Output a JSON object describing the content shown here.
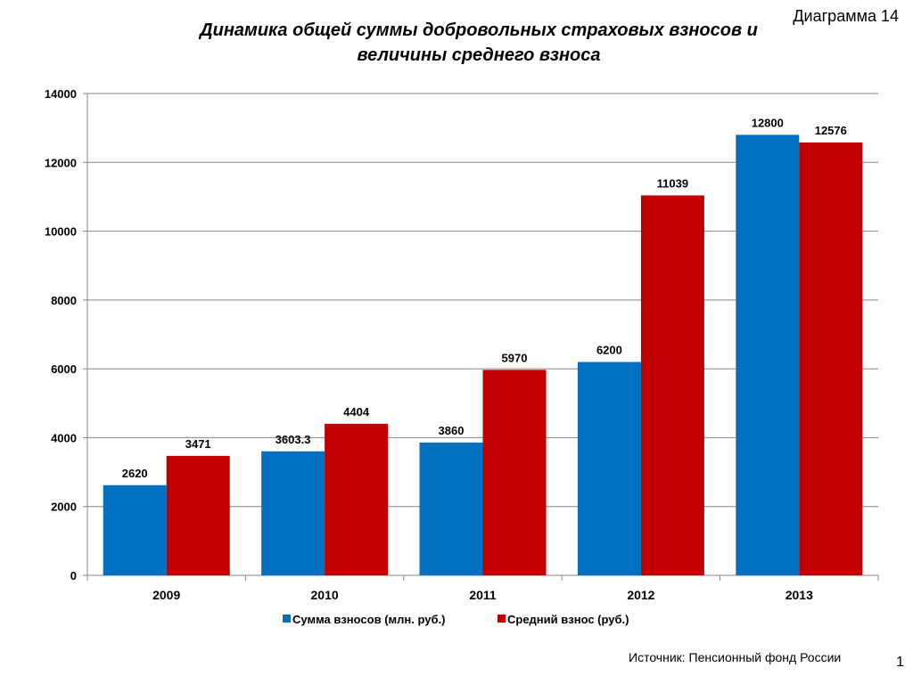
{
  "header": {
    "label": "Диаграмма  14"
  },
  "title": {
    "line1": "Динамика общей суммы добровольных страховых взносов и",
    "line2": "величины среднего взноса"
  },
  "source": "Источник:  Пенсионный фонд России",
  "page_number": "1",
  "colors": {
    "series1": "#0070C0",
    "series2": "#C00000",
    "grid": "#868686"
  },
  "chart_data": {
    "type": "bar",
    "title": "",
    "xlabel": "",
    "ylabel": "",
    "categories": [
      "2009",
      "2010",
      "2011",
      "2012",
      "2013"
    ],
    "series": [
      {
        "name": "Сумма взносов (млн. руб.)",
        "values": [
          2620,
          3603.3,
          3860,
          6200,
          12800
        ],
        "labels": [
          "2620",
          "3603.3",
          "3860",
          "6200",
          "12800"
        ]
      },
      {
        "name": "Средний взнос (руб.)",
        "values": [
          3471,
          4404,
          5970,
          11039,
          12576
        ],
        "labels": [
          "3471",
          "4404",
          "5970",
          "11039",
          "12576"
        ]
      }
    ],
    "ylim": [
      0,
      14000
    ],
    "yticks": [
      "0",
      "2000",
      "4000",
      "6000",
      "8000",
      "10000",
      "12000",
      "14000"
    ],
    "grid": true,
    "legend_position": "bottom"
  }
}
